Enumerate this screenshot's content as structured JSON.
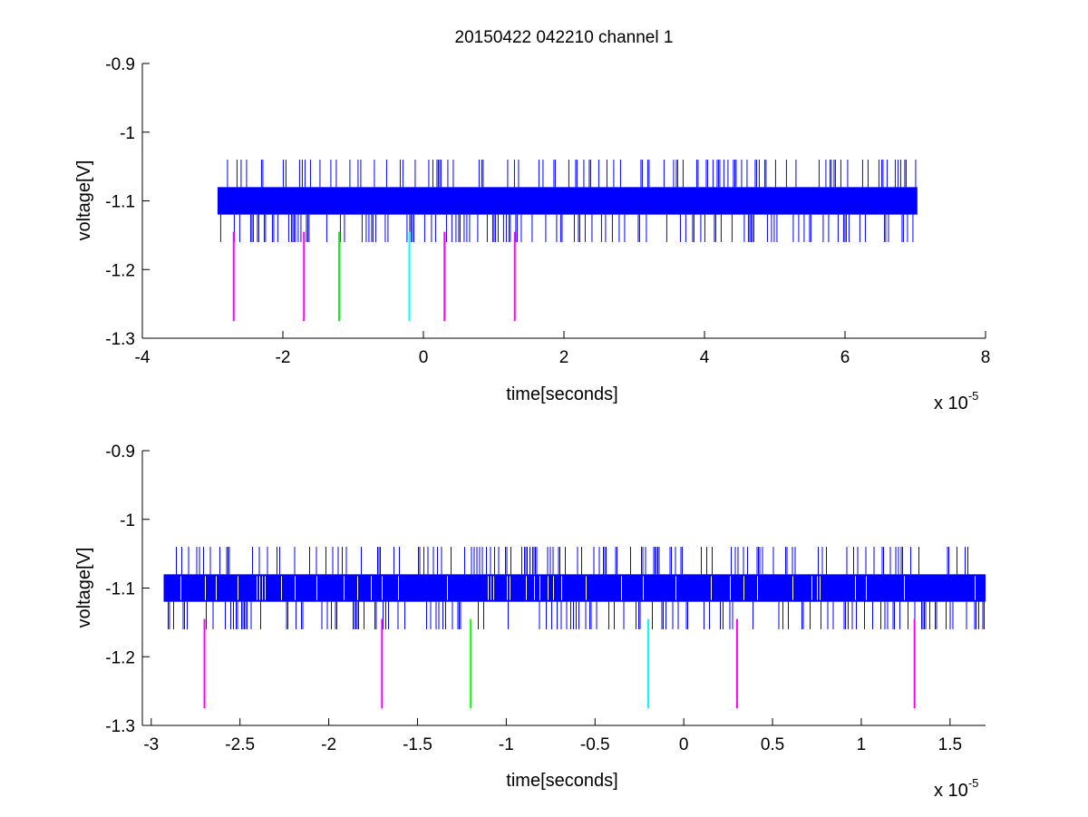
{
  "chart_data": [
    {
      "type": "line",
      "title": "20150422 042210 channel 1",
      "xlabel": "time[seconds]",
      "ylabel": "voltage[V]",
      "x_multiplier_label": "x 10",
      "x_multiplier_exp": "-5",
      "xlim": [
        -4,
        8
      ],
      "ylim": [
        -1.3,
        -0.9
      ],
      "xticks": [
        -4,
        -2,
        0,
        2,
        4,
        6,
        8
      ],
      "xtick_labels": [
        "-4",
        "-2",
        "0",
        "2",
        "4",
        "6",
        "8"
      ],
      "yticks": [
        -0.9,
        -1,
        -1.1,
        -1.2,
        -1.3
      ],
      "ytick_labels": [
        "-0.9",
        "-1",
        "-1.1",
        "-1.2",
        "-1.3"
      ],
      "grid": false,
      "signal": {
        "color": "#0000ff",
        "x_range": [
          -2.93,
          7.03
        ],
        "band": [
          -1.12,
          -1.08
        ],
        "upper_spike": -1.04,
        "lower_spike": -1.16
      },
      "markers": [
        {
          "x": -2.7,
          "color": "#ff00ff",
          "y_range": [
            -1.145,
            -1.275
          ]
        },
        {
          "x": -1.7,
          "color": "#ff00ff",
          "y_range": [
            -1.145,
            -1.275
          ]
        },
        {
          "x": -1.2,
          "color": "#00ff00",
          "y_range": [
            -1.145,
            -1.275
          ]
        },
        {
          "x": -0.2,
          "color": "#00ffff",
          "y_range": [
            -1.145,
            -1.275
          ]
        },
        {
          "x": 0.3,
          "color": "#ff00ff",
          "y_range": [
            -1.145,
            -1.275
          ]
        },
        {
          "x": 1.3,
          "color": "#ff00ff",
          "y_range": [
            -1.145,
            -1.275
          ]
        }
      ]
    },
    {
      "type": "line",
      "title": "",
      "xlabel": "time[seconds]",
      "ylabel": "voltage[V]",
      "x_multiplier_label": "x 10",
      "x_multiplier_exp": "-5",
      "xlim": [
        -3.05,
        1.7
      ],
      "ylim": [
        -1.3,
        -0.9
      ],
      "xticks": [
        -3,
        -2.5,
        -2,
        -1.5,
        -1,
        -0.5,
        0,
        0.5,
        1,
        1.5
      ],
      "xtick_labels": [
        "-3",
        "-2.5",
        "-2",
        "-1.5",
        "-1",
        "-0.5",
        "0",
        "0.5",
        "1",
        "1.5"
      ],
      "yticks": [
        -0.9,
        -1,
        -1.1,
        -1.2,
        -1.3
      ],
      "ytick_labels": [
        "-0.9",
        "-1",
        "-1.1",
        "-1.2",
        "-1.3"
      ],
      "grid": false,
      "signal": {
        "color": "#0000ff",
        "x_range": [
          -2.93,
          1.7
        ],
        "band": [
          -1.12,
          -1.08
        ],
        "upper_spike": -1.04,
        "lower_spike": -1.16
      },
      "markers": [
        {
          "x": -2.7,
          "color": "#ff00ff",
          "y_range": [
            -1.145,
            -1.275
          ]
        },
        {
          "x": -1.7,
          "color": "#ff00ff",
          "y_range": [
            -1.145,
            -1.275
          ]
        },
        {
          "x": -1.2,
          "color": "#00ff00",
          "y_range": [
            -1.145,
            -1.275
          ]
        },
        {
          "x": -0.2,
          "color": "#00ffff",
          "y_range": [
            -1.145,
            -1.275
          ]
        },
        {
          "x": 0.3,
          "color": "#ff00ff",
          "y_range": [
            -1.145,
            -1.275
          ]
        },
        {
          "x": 1.3,
          "color": "#ff00ff",
          "y_range": [
            -1.145,
            -1.275
          ]
        }
      ]
    }
  ]
}
